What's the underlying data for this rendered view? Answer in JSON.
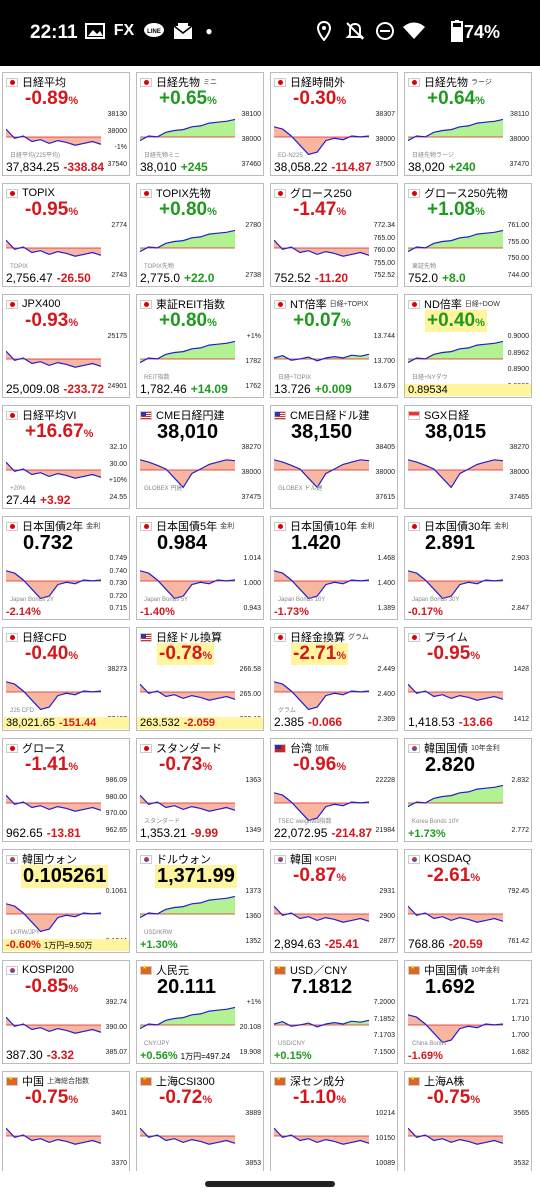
{
  "status_bar": {
    "time": "22:11",
    "battery": "74%",
    "icons": [
      "gallery-icon",
      "fx-app-icon",
      "line-app-icon",
      "mail-icon",
      "dot-icon",
      "location-icon",
      "mute-icon",
      "dnd-icon",
      "wifi-icon",
      "battery-icon"
    ],
    "fx_label": "FX",
    "line_label": "LINE"
  },
  "colors": {
    "negative": "#d5171d",
    "positive": "#1e9b1e",
    "neg_fill": "#f7a98f",
    "pos_fill": "#a6f07f",
    "line": "#1f1fd0",
    "highlight": "#fff59e"
  },
  "tiles": [
    {
      "name": "日経平均",
      "sub": "",
      "flag": "jp",
      "pct": "-0.89",
      "pct_unit": "%",
      "dir": "neg",
      "price": "37,834.25",
      "chg": "-338.84",
      "scale": [
        "38130",
        "38000",
        "-1%",
        "37540"
      ],
      "chart_text": "日経平均(225平均)",
      "shape": "down"
    },
    {
      "name": "日経先物",
      "sub": "ミニ",
      "flag": "jp",
      "pct": "+0.65",
      "pct_unit": "%",
      "dir": "pos",
      "price": "38,010",
      "chg": "+245",
      "scale": [
        "38100",
        "38000",
        "37460"
      ],
      "chart_text": "日経先物ミニ",
      "shape": "up"
    },
    {
      "name": "日経時間外",
      "sub": "",
      "flag": "jp",
      "pct": "-0.30",
      "pct_unit": "%",
      "dir": "neg",
      "price": "38,058.22",
      "chg": "-114.87",
      "scale": [
        "38307",
        "38000",
        "37500"
      ],
      "chart_text": "ED-N225",
      "shape": "vdown"
    },
    {
      "name": "日経先物",
      "sub": "ラージ",
      "flag": "jp",
      "pct": "+0.64",
      "pct_unit": "%",
      "dir": "pos",
      "price": "38,020",
      "chg": "+240",
      "scale": [
        "38110",
        "38000",
        "37470"
      ],
      "chart_text": "日経先物ラージ",
      "shape": "up"
    },
    {
      "name": "TOPIX",
      "sub": "",
      "flag": "jp",
      "pct": "-0.95",
      "pct_unit": "%",
      "dir": "neg",
      "price": "2,756.47",
      "chg": "-26.50",
      "scale": [
        "2774",
        "2743"
      ],
      "chart_text": "TOPIX",
      "shape": "down"
    },
    {
      "name": "TOPIX先物",
      "sub": "",
      "flag": "jp",
      "pct": "+0.80",
      "pct_unit": "%",
      "dir": "pos",
      "price": "2,775.0",
      "chg": "+22.0",
      "scale": [
        "2780",
        "2738"
      ],
      "chart_text": "TOPIX先物",
      "shape": "up"
    },
    {
      "name": "グロース250",
      "sub": "",
      "flag": "jp",
      "pct": "-1.47",
      "pct_unit": "%",
      "dir": "neg",
      "price": "752.52",
      "chg": "-11.20",
      "scale": [
        "772.34",
        "765.00",
        "760.00",
        "755.00",
        "752.52"
      ],
      "chart_text": "",
      "shape": "down"
    },
    {
      "name": "グロース250先物",
      "sub": "",
      "flag": "jp",
      "pct": "+1.08",
      "pct_unit": "%",
      "dir": "pos",
      "price": "752.0",
      "chg": "+8.0",
      "scale": [
        "761.00",
        "755.00",
        "750.00",
        "744.00"
      ],
      "chart_text": "東証先物",
      "shape": "up"
    },
    {
      "name": "JPX400",
      "sub": "",
      "flag": "jp",
      "pct": "-0.93",
      "pct_unit": "%",
      "dir": "neg",
      "price": "25,009.08",
      "chg": "-233.72",
      "scale": [
        "25175",
        "24901"
      ],
      "chart_text": "",
      "shape": "down"
    },
    {
      "name": "東証REIT指数",
      "sub": "",
      "flag": "jp",
      "pct": "+0.80",
      "pct_unit": "%",
      "dir": "pos",
      "price": "1,782.46",
      "chg": "+14.09",
      "scale": [
        "+1%",
        "1782",
        "1762"
      ],
      "chart_text": "REIT指数",
      "shape": "up"
    },
    {
      "name": "NT倍率",
      "sub": "日経÷TOPIX",
      "flag": "jp",
      "pct": "+0.07",
      "pct_unit": "%",
      "dir": "pos",
      "price": "13.726",
      "chg": "+0.009",
      "scale": [
        "13.744",
        "13.700",
        "13.679"
      ],
      "chart_text": "日経÷TOPIX",
      "shape": "flat"
    },
    {
      "name": "ND倍率",
      "sub": "日経÷DOW",
      "flag": "jp",
      "pct": "+0.40",
      "pct_unit": "%",
      "dir": "pos",
      "pct_hl": true,
      "price": "0.89534",
      "chg": "",
      "price_hl": true,
      "scale": [
        "0.9000",
        "0.8962",
        "0.8900",
        "0.8866"
      ],
      "chart_text": "日経÷NYダウ",
      "shape": "up"
    },
    {
      "name": "日経平均VI",
      "sub": "",
      "flag": "jp",
      "pct": "+16.67",
      "pct_unit": "%",
      "dir": "neg",
      "price": "27.44",
      "chg": "+3.92",
      "scale": [
        "32.10",
        "30.00",
        "+10%",
        "24.55"
      ],
      "chart_text": "+20%",
      "shape": "down"
    },
    {
      "name": "CME日経円建",
      "sub": "",
      "flag": "us",
      "pct": "38,010",
      "pct_unit": "",
      "dir": "blk",
      "price": "",
      "chg": "",
      "scale": [
        "38270",
        "38000",
        "37475"
      ],
      "chart_text": "GLOBEX 円建",
      "shape": "vup"
    },
    {
      "name": "CME日経ドル建",
      "sub": "",
      "flag": "us",
      "pct": "38,150",
      "pct_unit": "",
      "dir": "blk",
      "price": "",
      "chg": "",
      "scale": [
        "38405",
        "38000",
        "37615"
      ],
      "chart_text": "GLOBEX ドル建",
      "shape": "vup"
    },
    {
      "name": "SGX日経",
      "sub": "",
      "flag": "sg",
      "pct": "38,015",
      "pct_unit": "",
      "dir": "blk",
      "price": "",
      "chg": "",
      "scale": [
        "38270",
        "38000",
        "37465"
      ],
      "chart_text": "",
      "shape": "vup"
    },
    {
      "name": "日本国債2年",
      "sub": "金利",
      "flag": "jp",
      "pct": "0.732",
      "pct_unit": "",
      "dir": "blk",
      "price": "",
      "chg": "-2.14",
      "chg_unit": "%",
      "chg_dir": "neg",
      "scale": [
        "0.749",
        "0.740",
        "0.730",
        "0.720",
        "0.715"
      ],
      "chart_text": "Japan Bonds 2Y",
      "shape": "vdown"
    },
    {
      "name": "日本国債5年",
      "sub": "金利",
      "flag": "jp",
      "pct": "0.984",
      "pct_unit": "",
      "dir": "blk",
      "price": "",
      "chg": "-1.40",
      "chg_unit": "%",
      "chg_dir": "neg",
      "scale": [
        "1.014",
        "1.000",
        "0.943"
      ],
      "chart_text": "Japan Bonds 5Y",
      "shape": "vdown"
    },
    {
      "name": "日本国債10年",
      "sub": "金利",
      "flag": "jp",
      "pct": "1.420",
      "pct_unit": "",
      "dir": "blk",
      "price": "",
      "chg": "-1.73",
      "chg_unit": "%",
      "chg_dir": "neg",
      "scale": [
        "1.468",
        "1.400",
        "1.389"
      ],
      "chart_text": "Japan Bonds 10Y",
      "shape": "vdown"
    },
    {
      "name": "日本国債30年",
      "sub": "金利",
      "flag": "jp",
      "pct": "2.891",
      "pct_unit": "",
      "dir": "blk",
      "price": "",
      "chg": "-0.17",
      "chg_unit": "%",
      "chg_dir": "neg",
      "scale": [
        "2.903",
        "2.847"
      ],
      "chart_text": "Japan Bonds 30Y",
      "shape": "vdown"
    },
    {
      "name": "日経CFD",
      "sub": "",
      "flag": "jp",
      "pct": "-0.40",
      "pct_unit": "%",
      "dir": "neg",
      "price": "38,021.65",
      "chg": "-151.44",
      "price_hl": true,
      "scale": [
        "38273",
        "37467"
      ],
      "chart_text": "225 CFD",
      "shape": "vdown"
    },
    {
      "name": "日経ドル換算",
      "sub": "",
      "flag": "us",
      "pct": "-0.78",
      "pct_unit": "%",
      "dir": "neg",
      "pct_hl": true,
      "price": "263.532",
      "chg": "-2.059",
      "price_hl": true,
      "scale": [
        "266.58",
        "265.00",
        "262.13"
      ],
      "chart_text": "",
      "shape": "down"
    },
    {
      "name": "日経金換算",
      "sub": "グラム",
      "flag": "jp",
      "pct": "-2.71",
      "pct_unit": "%",
      "dir": "neg",
      "pct_hl": true,
      "price": "2.385",
      "chg": "-0.066",
      "scale": [
        "2.449",
        "2.400",
        "2.369"
      ],
      "chart_text": "グラム",
      "shape": "vdown"
    },
    {
      "name": "プライム",
      "sub": "",
      "flag": "jp",
      "pct": "-0.95",
      "pct_unit": "%",
      "dir": "neg",
      "price": "1,418.53",
      "chg": "-13.66",
      "scale": [
        "1428",
        "1412"
      ],
      "chart_text": "",
      "shape": "down"
    },
    {
      "name": "グロース",
      "sub": "",
      "flag": "jp",
      "pct": "-1.41",
      "pct_unit": "%",
      "dir": "neg",
      "price": "962.65",
      "chg": "-13.81",
      "scale": [
        "986.09",
        "980.00",
        "970.00",
        "962.65"
      ],
      "chart_text": "",
      "shape": "down"
    },
    {
      "name": "スタンダード",
      "sub": "",
      "flag": "jp",
      "pct": "-0.73",
      "pct_unit": "%",
      "dir": "neg",
      "price": "1,353.21",
      "chg": "-9.99",
      "scale": [
        "1363",
        "1349"
      ],
      "chart_text": "スタンダード",
      "shape": "down"
    },
    {
      "name": "台湾",
      "sub": "加権",
      "flag": "tw",
      "pct": "-0.96",
      "pct_unit": "%",
      "dir": "neg",
      "price": "22,072.95",
      "chg": "-214.87",
      "scale": [
        "22228",
        "21984"
      ],
      "chart_text": "TSEC weighted指数",
      "shape": "vdown"
    },
    {
      "name": "韓国国債",
      "sub": "10年金利",
      "flag": "kr",
      "pct": "2.820",
      "pct_unit": "",
      "dir": "blk",
      "price": "",
      "chg": "+1.73",
      "chg_unit": "%",
      "chg_dir": "pos",
      "scale": [
        "2.832",
        "2.772"
      ],
      "chart_text": "Korea Bonds 10Y",
      "shape": "up"
    },
    {
      "name": "韓国ウォン",
      "sub": "",
      "flag": "kr",
      "pct": "0.105261",
      "pct_unit": "",
      "dir": "blk",
      "pct_hl": true,
      "price": "",
      "chg": "-0.60",
      "chg_unit": "%",
      "chg_dir": "neg",
      "note": "1万円=9.50万",
      "bottom_hl": true,
      "scale": [
        "0.1061",
        "0.1044"
      ],
      "chart_text": "1KRW/JPY",
      "shape": "vdown"
    },
    {
      "name": "ドルウォン",
      "sub": "",
      "flag": "kr",
      "pct": "1,371.99",
      "pct_unit": "",
      "dir": "blk",
      "pct_hl": true,
      "price": "",
      "chg": "+1.30",
      "chg_unit": "%",
      "chg_dir": "pos",
      "scale": [
        "1373",
        "1360",
        "1352"
      ],
      "chart_text": "USD/KRW",
      "shape": "up"
    },
    {
      "name": "韓国",
      "sub": "KOSPI",
      "flag": "kr",
      "pct": "-0.87",
      "pct_unit": "%",
      "dir": "neg",
      "price": "2,894.63",
      "chg": "-25.41",
      "scale": [
        "2931",
        "2900",
        "2877"
      ],
      "chart_text": "",
      "shape": "down"
    },
    {
      "name": "KOSDAQ",
      "sub": "",
      "flag": "kr",
      "pct": "-2.61",
      "pct_unit": "%",
      "dir": "neg",
      "price": "768.86",
      "chg": "-20.59",
      "scale": [
        "792.45",
        "761.42"
      ],
      "chart_text": "",
      "shape": "down"
    },
    {
      "name": "KOSPI200",
      "sub": "",
      "flag": "kr",
      "pct": "-0.85",
      "pct_unit": "%",
      "dir": "neg",
      "price": "387.30",
      "chg": "-3.32",
      "scale": [
        "392.74",
        "390.00",
        "385.07"
      ],
      "chart_text": "",
      "shape": "down"
    },
    {
      "name": "人民元",
      "sub": "",
      "flag": "cn",
      "pct": "20.111",
      "pct_unit": "",
      "dir": "blk",
      "price": "",
      "chg": "+0.56",
      "chg_unit": "%",
      "chg_dir": "pos",
      "note": "1万円=497.24",
      "scale": [
        "+1%",
        "20.108",
        "19.908"
      ],
      "chart_text": "CNY/JPY",
      "shape": "up"
    },
    {
      "name": "USD／CNY",
      "sub": "",
      "flag": "cn",
      "pct": "7.1812",
      "pct_unit": "",
      "dir": "blk",
      "price": "",
      "chg": "+0.15",
      "chg_unit": "%",
      "chg_dir": "pos",
      "scale": [
        "7.2000",
        "7.1852",
        "7.1703",
        "7.1500"
      ],
      "chart_text": "USD/CNY",
      "shape": "flat"
    },
    {
      "name": "中国国債",
      "sub": "10年金利",
      "flag": "cn",
      "pct": "1.692",
      "pct_unit": "",
      "dir": "blk",
      "price": "",
      "chg": "-1.69",
      "chg_unit": "%",
      "chg_dir": "neg",
      "scale": [
        "1.721",
        "1.710",
        "1.700",
        "1.682"
      ],
      "chart_text": "China Bonds",
      "shape": "vdown"
    },
    {
      "name": "中国",
      "sub": "上海総合指数",
      "flag": "cn",
      "pct": "-0.75",
      "pct_unit": "%",
      "dir": "neg",
      "price": "",
      "chg": "",
      "scale": [
        "3401",
        "3370"
      ],
      "chart_text": "",
      "shape": "down"
    },
    {
      "name": "上海CSI300",
      "sub": "",
      "flag": "cn",
      "pct": "-0.72",
      "pct_unit": "%",
      "dir": "neg",
      "price": "",
      "chg": "",
      "scale": [
        "3889",
        "3853"
      ],
      "chart_text": "",
      "shape": "down"
    },
    {
      "name": "深セン成分",
      "sub": "",
      "flag": "cn",
      "pct": "-1.10",
      "pct_unit": "%",
      "dir": "neg",
      "price": "",
      "chg": "",
      "scale": [
        "10214",
        "10150",
        "10089"
      ],
      "chart_text": "",
      "shape": "down"
    },
    {
      "name": "上海A株",
      "sub": "",
      "flag": "cn",
      "pct": "-0.75",
      "pct_unit": "%",
      "dir": "neg",
      "price": "",
      "chg": "",
      "scale": [
        "3565",
        "3532"
      ],
      "chart_text": "",
      "shape": "down"
    }
  ]
}
